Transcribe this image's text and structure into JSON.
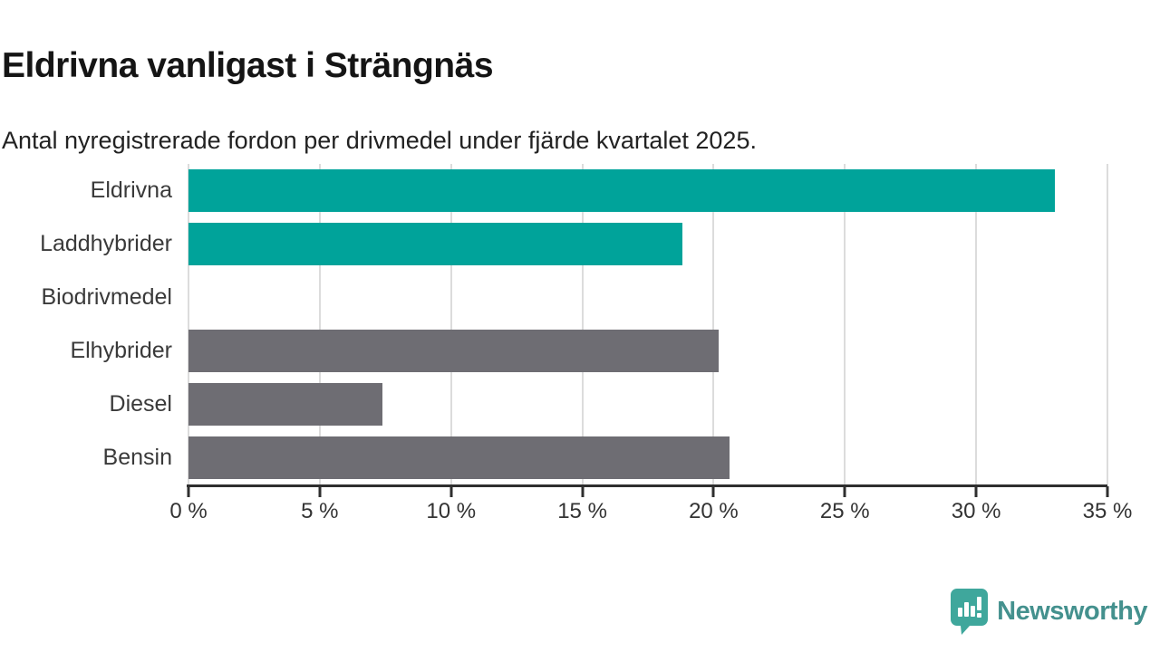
{
  "header": {
    "title": "Eldrivna vanligast i Strängnäs",
    "subtitle": "Antal nyregistrerade fordon per drivmedel under fjärde kvartalet 2025."
  },
  "chart_data": {
    "type": "bar",
    "orientation": "horizontal",
    "title": "Eldrivna vanligast i Strängnäs",
    "subtitle": "Antal nyregistrerade fordon per drivmedel under fjärde kvartalet 2025.",
    "categories": [
      "Eldrivna",
      "Laddhybrider",
      "Biodrivmedel",
      "Elhybrider",
      "Diesel",
      "Bensin"
    ],
    "values": [
      33,
      18.8,
      0,
      20.2,
      7.4,
      20.6
    ],
    "highlighted": [
      true,
      true,
      false,
      false,
      false,
      false
    ],
    "unit": "%",
    "xlim": [
      0,
      35
    ],
    "x_ticks": [
      "0 %",
      "5 %",
      "10 %",
      "15 %",
      "20 %",
      "25 %",
      "30 %",
      "35 %"
    ],
    "grid": "vertical",
    "legend": "none",
    "colors": {
      "highlight": "#00a39a",
      "default": "#6e6d73",
      "gridline": "#dcdcdc",
      "axis": "#2f2f2f"
    }
  },
  "footer": {
    "brand": "Newsworthy",
    "brand_color": "#44918e",
    "icon": "newsworthy-bubble-chart",
    "icon_color": "#3fa79c"
  }
}
